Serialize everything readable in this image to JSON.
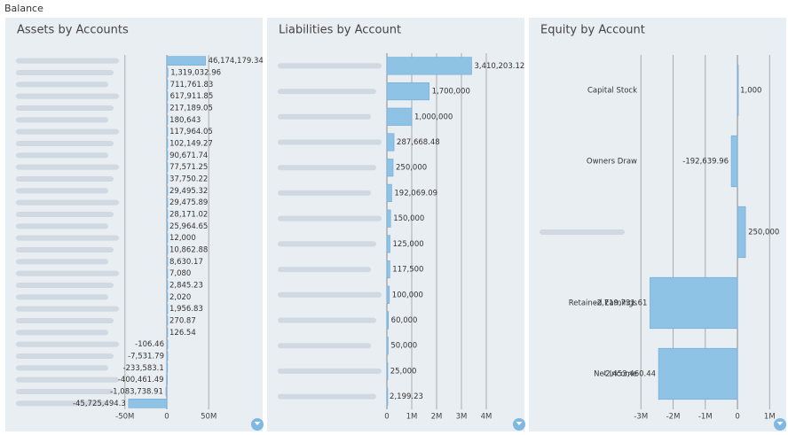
{
  "title": "Balance",
  "chart_data": [
    {
      "type": "bar",
      "orientation": "horizontal",
      "title": "Assets by Accounts",
      "categories": [
        null,
        null,
        null,
        null,
        null,
        null,
        null,
        null,
        null,
        null,
        null,
        null,
        null,
        null,
        null,
        null,
        null,
        null,
        null,
        null,
        null,
        null,
        null,
        null,
        null,
        null,
        null,
        null,
        null,
        null
      ],
      "values": [
        46174179.34,
        1319032.96,
        711761.83,
        617911.85,
        217189.05,
        180643,
        117964.05,
        102149.27,
        90671.74,
        77571.25,
        37750.22,
        29495.32,
        29475.89,
        28171.02,
        25964.65,
        12000,
        10862.88,
        8630.17,
        7080,
        2845.23,
        2020,
        1956.83,
        270.87,
        126.54,
        -106.46,
        -7531.79,
        -233583.1,
        -400461.49,
        -1083738.91,
        -45725494.3
      ],
      "value_labels": [
        "46,174,179.34",
        "1,319,032.96",
        "711,761.83",
        "617,911.85",
        "217,189.05",
        "180,643",
        "117,964.05",
        "102,149.27",
        "90,671.74",
        "77,571.25",
        "37,750.22",
        "29,495.32",
        "29,475.89",
        "28,171.02",
        "25,964.65",
        "12,000",
        "10,862.88",
        "8,630.17",
        "7,080",
        "2,845.23",
        "2,020",
        "1,956.83",
        "270.87",
        "126.54",
        "-106.46",
        "-7,531.79",
        "-233,583.1",
        "-400,461.49",
        "-1,083,738.91",
        "-45,725,494.3"
      ],
      "color": "#8fc3e6",
      "xlim": [
        -54000000,
        108000000
      ],
      "xticks": [
        {
          "value": -50000000,
          "label": "-50M"
        },
        0,
        {
          "value": 50000000,
          "label": "50M"
        }
      ],
      "grid": true
    },
    {
      "type": "bar",
      "orientation": "horizontal",
      "title": "Liabilities by Account",
      "categories": [
        null,
        null,
        null,
        null,
        null,
        null,
        null,
        null,
        null,
        null,
        null,
        null,
        null,
        null
      ],
      "values": [
        3410203.12,
        1700000,
        1000000,
        287668.48,
        250000,
        192069.09,
        150000,
        125000,
        117500,
        100000,
        60000,
        50000,
        25000,
        2199.23
      ],
      "value_labels": [
        "3,410,203.12",
        "1,700,000",
        "1,000,000",
        "287,668.48",
        "250,000",
        "192,069.09",
        "150,000",
        "125,000",
        "117,500",
        "100,000",
        "60,000",
        "50,000",
        "25,000",
        "2,199.23"
      ],
      "color": "#8fc3e6",
      "xlim": [
        0,
        5000000
      ],
      "xticks": [
        0,
        {
          "value": 1000000,
          "label": "1M"
        },
        {
          "value": 2000000,
          "label": "2M"
        },
        {
          "value": 3000000,
          "label": "3M"
        },
        {
          "value": 4000000,
          "label": "4M"
        }
      ],
      "grid": true
    },
    {
      "type": "bar",
      "orientation": "horizontal",
      "title": "Equity by Account",
      "categories": [
        "Capital Stock",
        "Owners Draw",
        null,
        "Retained Earnings",
        "Net Income"
      ],
      "values": [
        1000,
        -192639.96,
        250000,
        -2719731.61,
        -2453460.44
      ],
      "value_labels": [
        "1,000",
        "-192,639.96",
        "250,000",
        "-2,719,731.61",
        "-2,453,460.44"
      ],
      "color": "#8fc3e6",
      "xlim": [
        -3200000,
        1350000
      ],
      "xticks": [
        {
          "value": -3000000,
          "label": "-3M"
        },
        {
          "value": -2000000,
          "label": "-2M"
        },
        {
          "value": -1000000,
          "label": "-1M"
        },
        0,
        {
          "value": 1000000,
          "label": "1M"
        }
      ],
      "grid": true
    }
  ]
}
